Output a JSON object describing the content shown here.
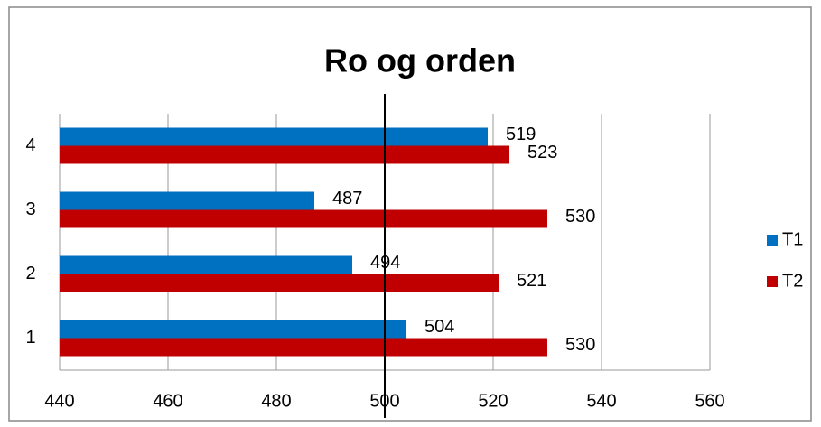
{
  "chart_data": {
    "type": "hbar",
    "title": "Ro og orden",
    "categories": [
      "1",
      "2",
      "3",
      "4"
    ],
    "series": [
      {
        "name": "T1",
        "color": "#0070c0",
        "values": [
          504,
          494,
          487,
          519
        ]
      },
      {
        "name": "T2",
        "color": "#c00000",
        "values": [
          530,
          521,
          530,
          523
        ]
      }
    ],
    "xlim": [
      440,
      560
    ],
    "xticks": [
      440,
      460,
      480,
      500,
      520,
      540,
      560
    ],
    "grid": true,
    "reference_line": 500,
    "legend": "right"
  }
}
